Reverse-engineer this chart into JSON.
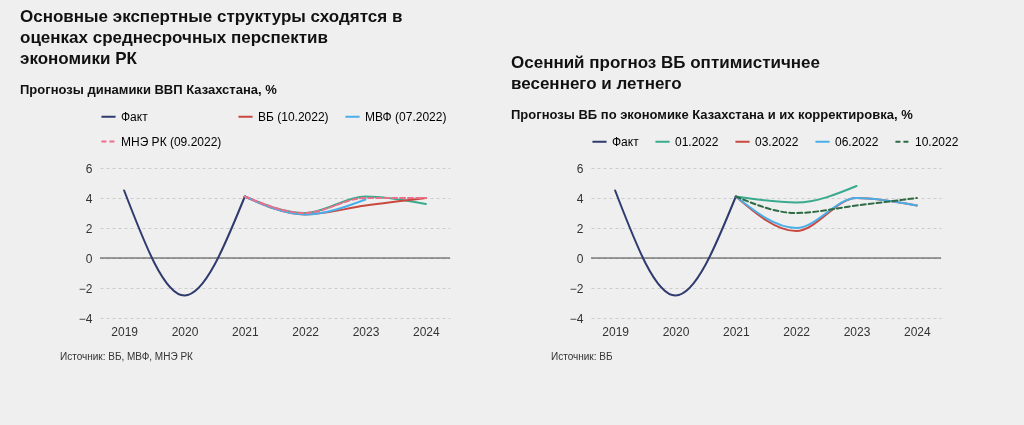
{
  "chart_data": [
    {
      "type": "line",
      "title": "Основные экспертные структуры сходятся в оценках среднесрочных перспектив экономики РК",
      "subtitle": "Прогнозы динамики ВВП Казахстана, %",
      "categories": [
        "2019",
        "2020",
        "2021",
        "2022",
        "2023",
        "2024"
      ],
      "series": [
        {
          "name": "Факт",
          "color": "#2f3a6e",
          "values": [
            4.5,
            -2.5,
            4.1,
            null,
            null,
            null
          ]
        },
        {
          "color": "#3aaa8e",
          "values": [
            null,
            null,
            4.1,
            3.0,
            4.1,
            3.6
          ]
        },
        {
          "name": "ВБ (10.2022)",
          "color": "#c8483f",
          "values": [
            null,
            null,
            4.1,
            2.9,
            3.5,
            4.0
          ]
        },
        {
          "name": "МВФ (07.2022)",
          "color": "#4aaee8",
          "values": [
            null,
            null,
            4.1,
            2.9,
            3.9,
            null
          ]
        },
        {
          "name": "МНЭ РК (09.2022)",
          "color": "#ec6e8a",
          "line_style": "dashed",
          "values": [
            null,
            null,
            4.1,
            3.0,
            4.0,
            4.0
          ]
        }
      ],
      "ylim": [
        -4,
        6
      ],
      "yticks": [
        -4,
        -2,
        0,
        2,
        4,
        6
      ],
      "grid": "y",
      "legend": "top",
      "ref_lines": [
        {
          "axis": "y",
          "value": 0,
          "color": "#444444"
        }
      ],
      "annotations": [
        "Источник: ВБ, МВФ, МНЭ РК"
      ]
    },
    {
      "type": "line",
      "title": "Осенний прогноз ВБ оптимистичнее весеннего и летнего",
      "subtitle": "Прогнозы ВБ по экономике Казахстана и их корректировка, %",
      "categories": [
        "2019",
        "2020",
        "2021",
        "2022",
        "2023",
        "2024"
      ],
      "series": [
        {
          "name": "Факт",
          "color": "#2f3a6e",
          "values": [
            4.5,
            -2.5,
            4.1,
            null,
            null,
            null
          ]
        },
        {
          "name": "01.2022",
          "color": "#3aaa8e",
          "values": [
            null,
            null,
            4.1,
            3.7,
            4.8,
            null
          ]
        },
        {
          "name": "03.2022",
          "color": "#c8483f",
          "values": [
            null,
            null,
            4.1,
            1.8,
            4.0,
            3.5
          ]
        },
        {
          "name": "06.2022",
          "color": "#4aaee8",
          "values": [
            null,
            null,
            4.1,
            2.0,
            4.0,
            3.5
          ]
        },
        {
          "name": "10.2022",
          "color": "#2e6b45",
          "line_style": "dashed",
          "values": [
            null,
            null,
            4.1,
            3.0,
            3.5,
            4.0
          ]
        }
      ],
      "ylim": [
        -4,
        6
      ],
      "yticks": [
        -4,
        -2,
        0,
        2,
        4,
        6
      ],
      "grid": "y",
      "legend": "top",
      "ref_lines": [
        {
          "axis": "y",
          "value": 0,
          "color": "#444444"
        }
      ],
      "annotations": [
        "Источник: ВБ"
      ]
    }
  ]
}
